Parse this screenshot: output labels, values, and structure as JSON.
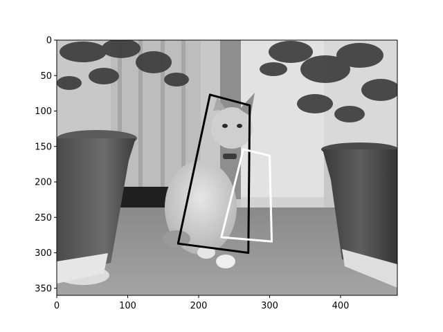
{
  "figure": {
    "image_extent": {
      "width": 480,
      "height": 360
    },
    "x_axis": {
      "ticks": [
        0,
        100,
        200,
        300,
        400
      ]
    },
    "y_axis": {
      "ticks": [
        0,
        50,
        100,
        150,
        200,
        250,
        300,
        350
      ]
    },
    "photo_description_hint": "grayscale photo of a seated cat between two flower pots on a tiled floor",
    "overlays": [
      {
        "name": "black-quadrilateral",
        "color": "#000000",
        "points": [
          [
            216,
            77
          ],
          [
            272,
            92
          ],
          [
            270,
            300
          ],
          [
            171,
            287
          ]
        ]
      },
      {
        "name": "white-quadrilateral",
        "color": "#ffffff",
        "points": [
          [
            263,
            154
          ],
          [
            300,
            163
          ],
          [
            303,
            284
          ],
          [
            232,
            278
          ]
        ]
      }
    ]
  }
}
